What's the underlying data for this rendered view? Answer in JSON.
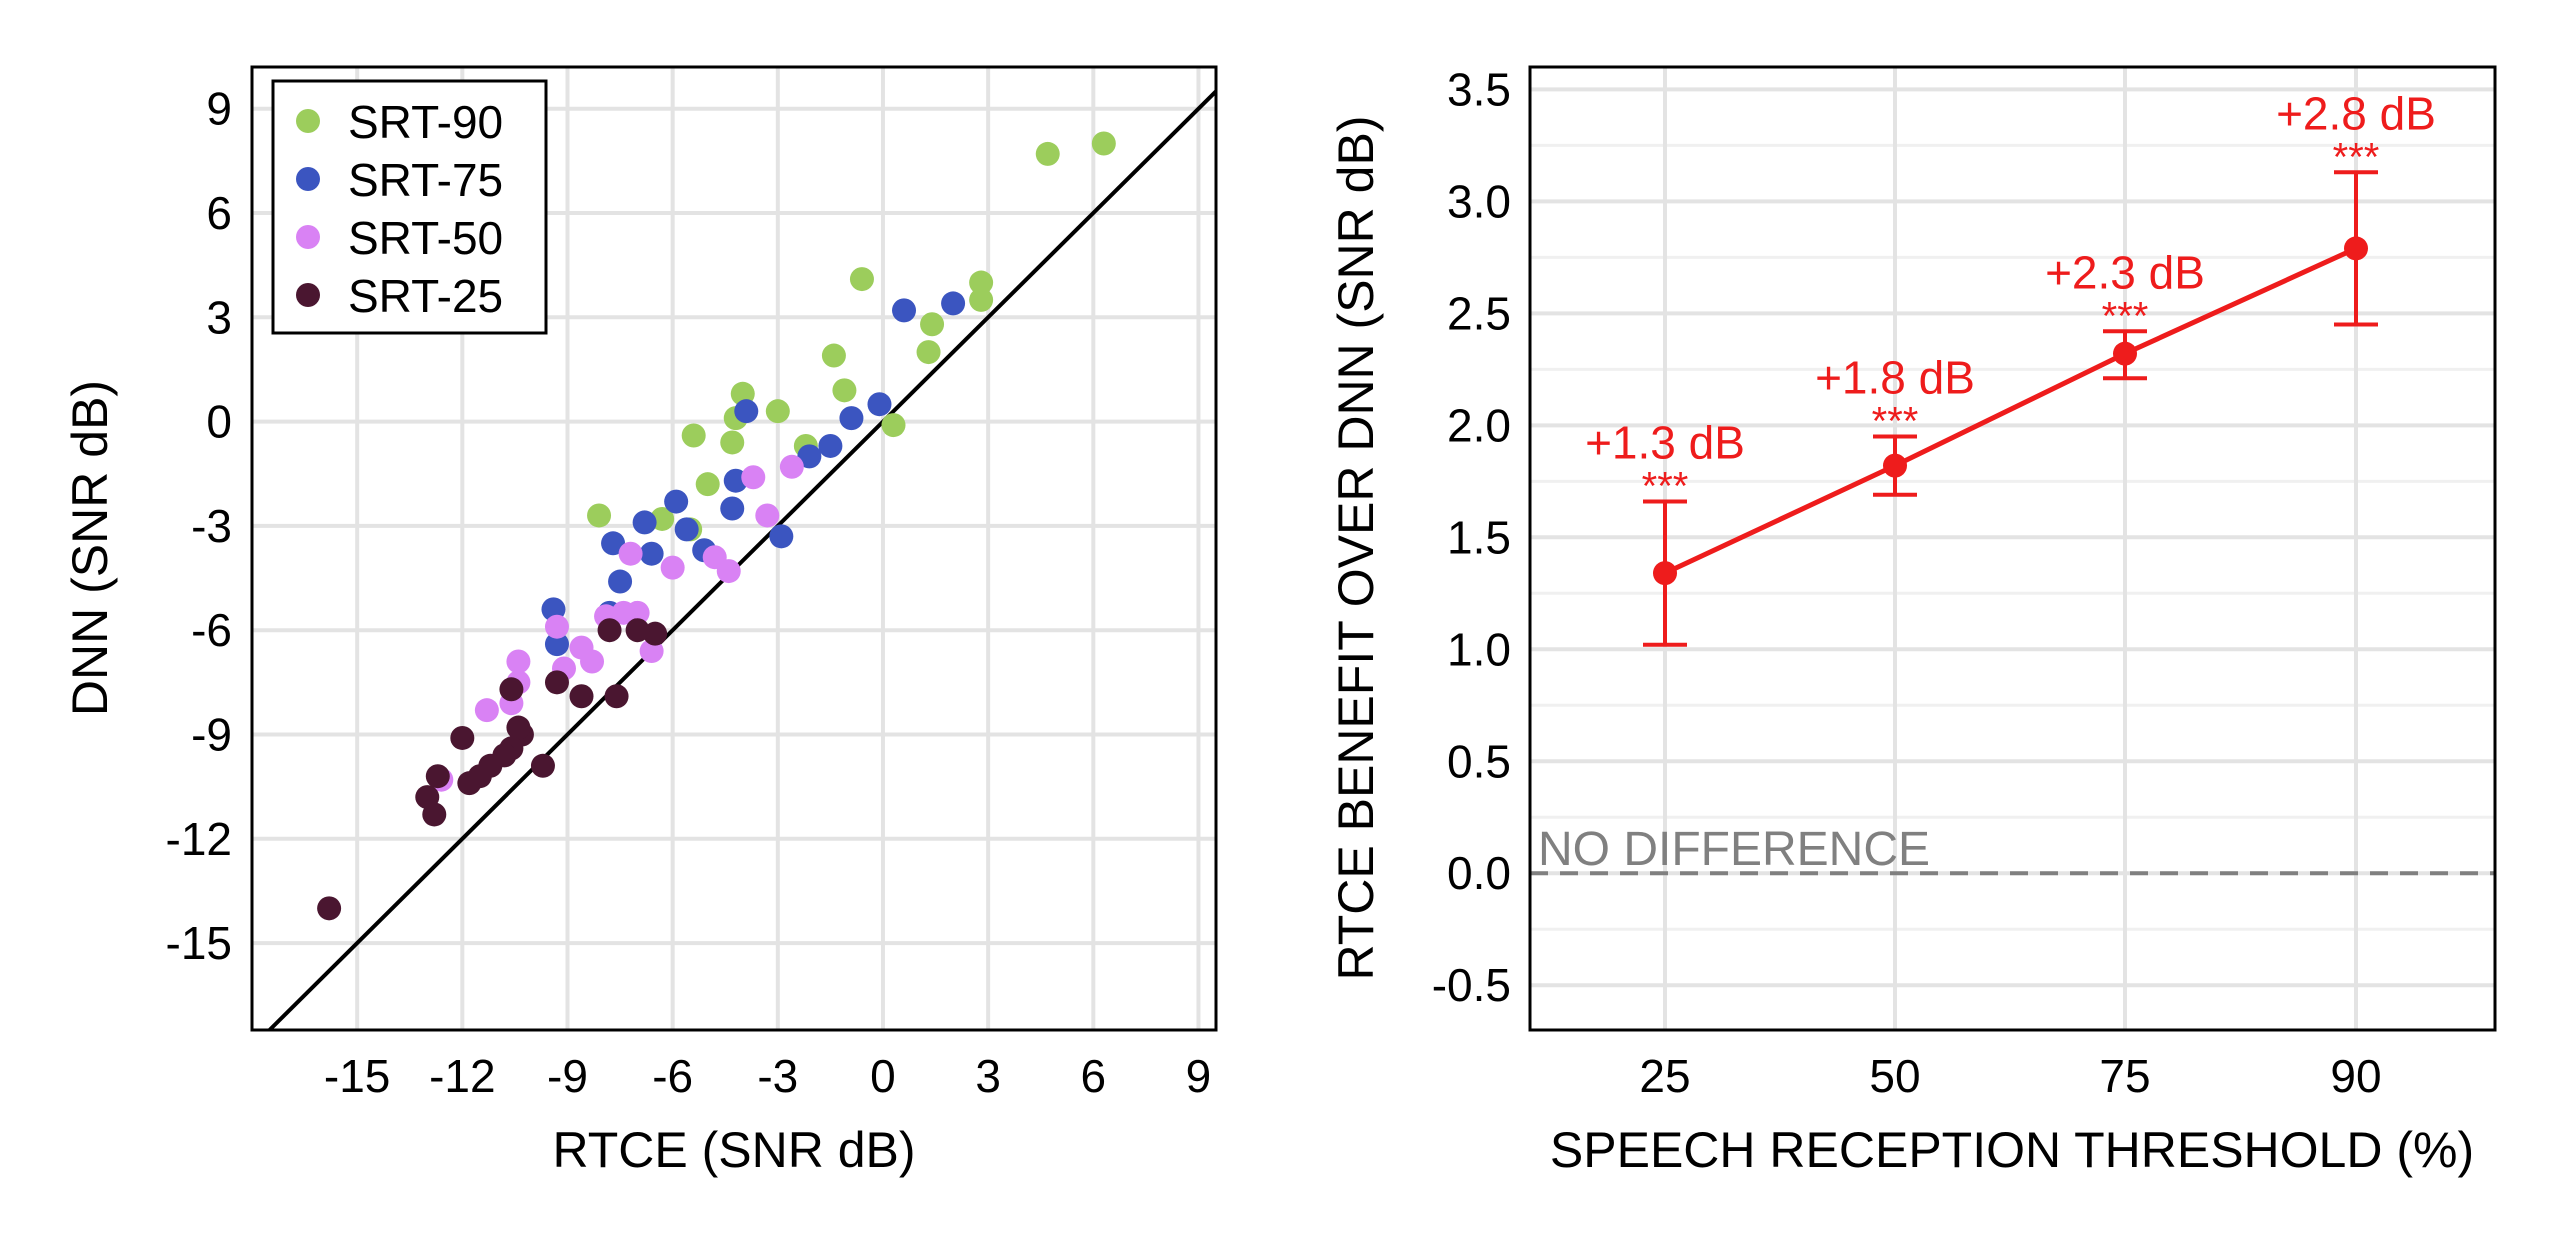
{
  "colors": {
    "SRT-90": "#9ccd5c",
    "SRT-75": "#3b55c0",
    "SRT-50": "#d982f4",
    "SRT-25": "#4a1630",
    "benefit": "#ee1c1c",
    "reference": "#808080",
    "grid": "#e3e3e3"
  },
  "chart_data": [
    {
      "type": "scatter",
      "xlabel": "RTCE (SNR dB)",
      "ylabel": "DNN (SNR dB)",
      "xlim": [
        -18,
        9.5
      ],
      "ylim": [
        -17.5,
        10.2
      ],
      "xticks": [
        -15,
        -12,
        -9,
        -6,
        -3,
        0,
        3,
        6,
        9
      ],
      "yticks": [
        9,
        6,
        3,
        0,
        -3,
        -6,
        -9,
        -12,
        -15
      ],
      "tick_labels_x": [
        "-15",
        "-12",
        "-9",
        "-6",
        "-3",
        "0",
        "3",
        "6",
        "9"
      ],
      "tick_labels_y": [
        "9",
        "6",
        "3",
        "0",
        "-3",
        "-6",
        "-9",
        "-12",
        "-15"
      ],
      "grid": true,
      "identity_line": true,
      "legend_position": "top-left",
      "legend": [
        "SRT-90",
        "SRT-75",
        "SRT-50",
        "SRT-25"
      ],
      "series": [
        {
          "name": "SRT-90",
          "points": [
            [
              4.7,
              7.7
            ],
            [
              6.3,
              8.0
            ],
            [
              2.8,
              4.0
            ],
            [
              2.8,
              3.5
            ],
            [
              1.4,
              2.8
            ],
            [
              1.3,
              2.0
            ],
            [
              -0.6,
              4.1
            ],
            [
              -1.1,
              0.9
            ],
            [
              -1.4,
              1.9
            ],
            [
              -2.2,
              -0.7
            ],
            [
              -3.0,
              0.3
            ],
            [
              -4.0,
              0.8
            ],
            [
              -4.2,
              0.1
            ],
            [
              -4.3,
              -0.6
            ],
            [
              -5.0,
              -1.8
            ],
            [
              -5.4,
              -0.4
            ],
            [
              -5.5,
              -3.1
            ],
            [
              -6.3,
              -2.8
            ],
            [
              -8.1,
              -2.7
            ],
            [
              0.3,
              -0.1
            ]
          ]
        },
        {
          "name": "SRT-75",
          "points": [
            [
              2.0,
              3.4
            ],
            [
              0.6,
              3.2
            ],
            [
              -0.1,
              0.5
            ],
            [
              -0.9,
              0.1
            ],
            [
              -1.5,
              -0.7
            ],
            [
              -2.1,
              -1.0
            ],
            [
              -2.9,
              -3.3
            ],
            [
              -3.9,
              0.3
            ],
            [
              -4.2,
              -1.7
            ],
            [
              -4.3,
              -2.5
            ],
            [
              -5.1,
              -3.7
            ],
            [
              -5.6,
              -3.1
            ],
            [
              -5.9,
              -2.3
            ],
            [
              -6.6,
              -3.8
            ],
            [
              -6.8,
              -2.9
            ],
            [
              -7.5,
              -4.6
            ],
            [
              -7.7,
              -3.5
            ],
            [
              -7.8,
              -5.5
            ],
            [
              -9.3,
              -6.4
            ],
            [
              -9.4,
              -5.4
            ]
          ]
        },
        {
          "name": "SRT-50",
          "points": [
            [
              -2.6,
              -1.3
            ],
            [
              -3.3,
              -2.7
            ],
            [
              -3.7,
              -1.6
            ],
            [
              -4.4,
              -4.3
            ],
            [
              -4.8,
              -3.9
            ],
            [
              -6.0,
              -4.2
            ],
            [
              -6.6,
              -6.6
            ],
            [
              -7.0,
              -5.5
            ],
            [
              -7.4,
              -5.5
            ],
            [
              -7.2,
              -3.8
            ],
            [
              -7.9,
              -5.6
            ],
            [
              -8.3,
              -6.9
            ],
            [
              -8.6,
              -6.5
            ],
            [
              -9.1,
              -7.1
            ],
            [
              -9.3,
              -5.9
            ],
            [
              -10.4,
              -6.9
            ],
            [
              -10.4,
              -7.5
            ],
            [
              -10.6,
              -8.1
            ],
            [
              -11.3,
              -8.3
            ],
            [
              -12.6,
              -10.3
            ]
          ]
        },
        {
          "name": "SRT-25",
          "points": [
            [
              -6.5,
              -6.1
            ],
            [
              -7.0,
              -6.0
            ],
            [
              -7.8,
              -6.0
            ],
            [
              -7.6,
              -7.9
            ],
            [
              -8.6,
              -7.9
            ],
            [
              -9.3,
              -7.5
            ],
            [
              -9.7,
              -9.9
            ],
            [
              -10.3,
              -9.0
            ],
            [
              -10.4,
              -8.8
            ],
            [
              -10.6,
              -9.4
            ],
            [
              -10.6,
              -7.7
            ],
            [
              -10.8,
              -9.6
            ],
            [
              -11.2,
              -9.9
            ],
            [
              -11.5,
              -10.2
            ],
            [
              -11.8,
              -10.4
            ],
            [
              -12.0,
              -9.1
            ],
            [
              -12.7,
              -10.2
            ],
            [
              -12.8,
              -11.3
            ],
            [
              -13.0,
              -10.8
            ],
            [
              -15.8,
              -14.0
            ]
          ]
        }
      ]
    },
    {
      "type": "line",
      "xlabel": "SPEECH RECEPTION THRESHOLD (%)",
      "ylabel": "RTCE BENEFIT OVER DNN (SNR dB)",
      "ylim": [
        -0.7,
        3.6
      ],
      "yticks": [
        3.5,
        3.0,
        2.5,
        2.0,
        1.5,
        1.0,
        0.5,
        0.0,
        -0.5
      ],
      "tick_labels_y": [
        "3.5",
        "3.0",
        "2.5",
        "2.0",
        "1.5",
        "1.0",
        "0.5",
        "0.0",
        "-0.5"
      ],
      "categories": [
        "25",
        "50",
        "75",
        "90"
      ],
      "grid": true,
      "values": [
        1.34,
        1.82,
        2.32,
        2.79
      ],
      "error_low": [
        1.02,
        1.69,
        2.21,
        2.45
      ],
      "error_high": [
        1.66,
        1.95,
        2.42,
        3.13
      ],
      "value_labels": [
        "+1.3 dB",
        "+1.8 dB",
        "+2.3 dB",
        "+2.8 dB"
      ],
      "significance": [
        "***",
        "***",
        "***",
        "***"
      ],
      "reference_line": {
        "y": 0.0,
        "label": "NO DIFFERENCE"
      }
    }
  ]
}
